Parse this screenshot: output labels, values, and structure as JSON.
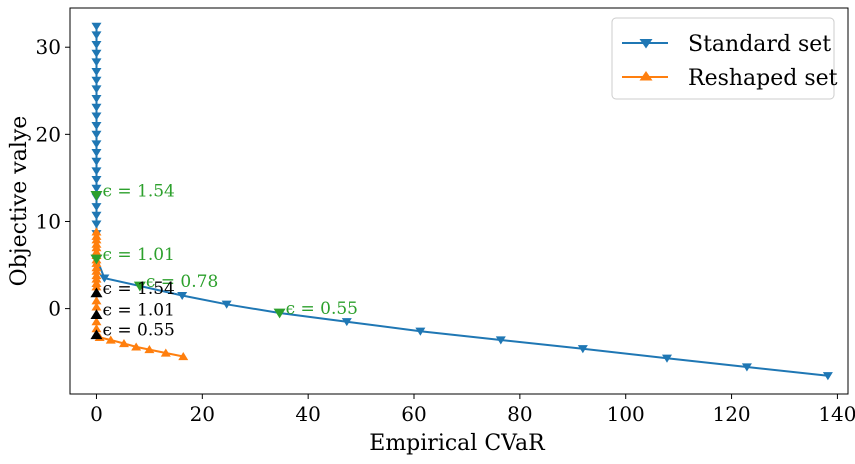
{
  "chart_data": {
    "type": "line",
    "xlabel": "Empirical CVaR",
    "ylabel": "Objective valye",
    "xlim": [
      -5,
      142
    ],
    "ylim": [
      -9.8,
      34.5
    ],
    "xticks": [
      0,
      20,
      40,
      60,
      80,
      100,
      120,
      140
    ],
    "yticks": [
      0,
      10,
      20,
      30
    ],
    "grid": false,
    "legend_position": "top-right",
    "colors": {
      "standard": "#1f77b4",
      "reshaped": "#ff7f0e",
      "highlight": "#2ca02c",
      "highlight_reshaped": "#000000"
    },
    "series": [
      {
        "name": "Standard set",
        "marker": "triangle-down",
        "x": [
          0,
          0,
          0,
          0,
          0,
          0,
          0,
          0,
          0,
          0,
          0,
          0,
          0,
          0,
          0,
          0,
          0,
          0,
          0,
          0,
          0,
          0,
          0,
          0,
          0,
          1.5,
          8.2,
          16.2,
          24.6,
          34.6,
          47.3,
          61.2,
          76.4,
          91.9,
          107.8,
          122.9,
          138.2
        ],
        "y": [
          32.4,
          31.4,
          30.3,
          29.3,
          28.3,
          27.2,
          26.2,
          25.2,
          24.1,
          23.1,
          22.1,
          21.0,
          20.0,
          18.9,
          17.9,
          16.9,
          15.8,
          14.8,
          13.8,
          12.8,
          11.7,
          10.7,
          9.7,
          8.6,
          5.8,
          3.5,
          2.6,
          1.5,
          0.5,
          -0.5,
          -1.5,
          -2.6,
          -3.6,
          -4.6,
          -5.7,
          -6.7,
          -7.7
        ]
      },
      {
        "name": "Reshaped set",
        "marker": "triangle-up",
        "x": [
          0,
          0,
          0,
          0,
          0,
          0,
          0,
          0,
          0,
          0,
          0,
          0,
          0,
          0,
          0,
          0,
          0,
          0,
          0,
          0,
          0,
          0,
          0.6,
          2.7,
          5.2,
          7.5,
          10.0,
          13.1,
          16.4
        ],
        "y": [
          8.8,
          8.3,
          7.9,
          7.4,
          7.0,
          6.5,
          6.1,
          5.6,
          5.2,
          4.7,
          4.3,
          3.8,
          3.4,
          2.9,
          2.5,
          1.8,
          0.9,
          0.2,
          -0.7,
          -1.5,
          -2.3,
          -3.0,
          -3.3,
          -3.6,
          -4.0,
          -4.4,
          -4.7,
          -5.1,
          -5.5
        ]
      }
    ],
    "annotations": [
      {
        "text": "ϵ = 1.54",
        "x": 0,
        "y": 13.0,
        "color": "#2ca02c",
        "marker": "triangle-down"
      },
      {
        "text": "ϵ = 1.01",
        "x": 0,
        "y": 5.7,
        "color": "#2ca02c",
        "marker": "triangle-down"
      },
      {
        "text": "ϵ = 0.78",
        "x": 8.2,
        "y": 2.6,
        "color": "#2ca02c",
        "marker": "triangle-down"
      },
      {
        "text": "ϵ = 0.55",
        "x": 34.6,
        "y": -0.5,
        "color": "#2ca02c",
        "marker": "triangle-down"
      },
      {
        "text": "ϵ = 1.54",
        "x": 0,
        "y": 1.8,
        "color": "#000000",
        "marker": "triangle-up"
      },
      {
        "text": "ϵ = 1.01",
        "x": 0,
        "y": -0.7,
        "color": "#000000",
        "marker": "triangle-up"
      },
      {
        "text": "ϵ = 0.55",
        "x": 0,
        "y": -3.0,
        "color": "#000000",
        "marker": "triangle-up"
      }
    ]
  }
}
